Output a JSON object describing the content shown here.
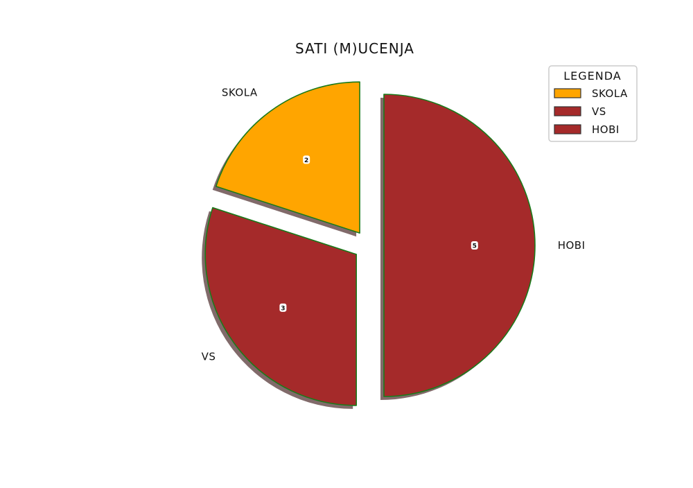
{
  "chart_data": {
    "type": "pie",
    "title": "SATI (M)UCENJA",
    "categories": [
      "SKOLA",
      "VS",
      "HOBI"
    ],
    "values": [
      2,
      3,
      5
    ],
    "colors": [
      "#ffa500",
      "#a52a2a",
      "#a52a2a"
    ],
    "edge_color": "#1a7a1a",
    "exploded": true,
    "start_angle_deg": 90,
    "direction": "counterclockwise",
    "legend": {
      "title": "LEGENDA",
      "position": "top-right",
      "entries": [
        "SKOLA",
        "VS",
        "HOBI"
      ]
    }
  }
}
